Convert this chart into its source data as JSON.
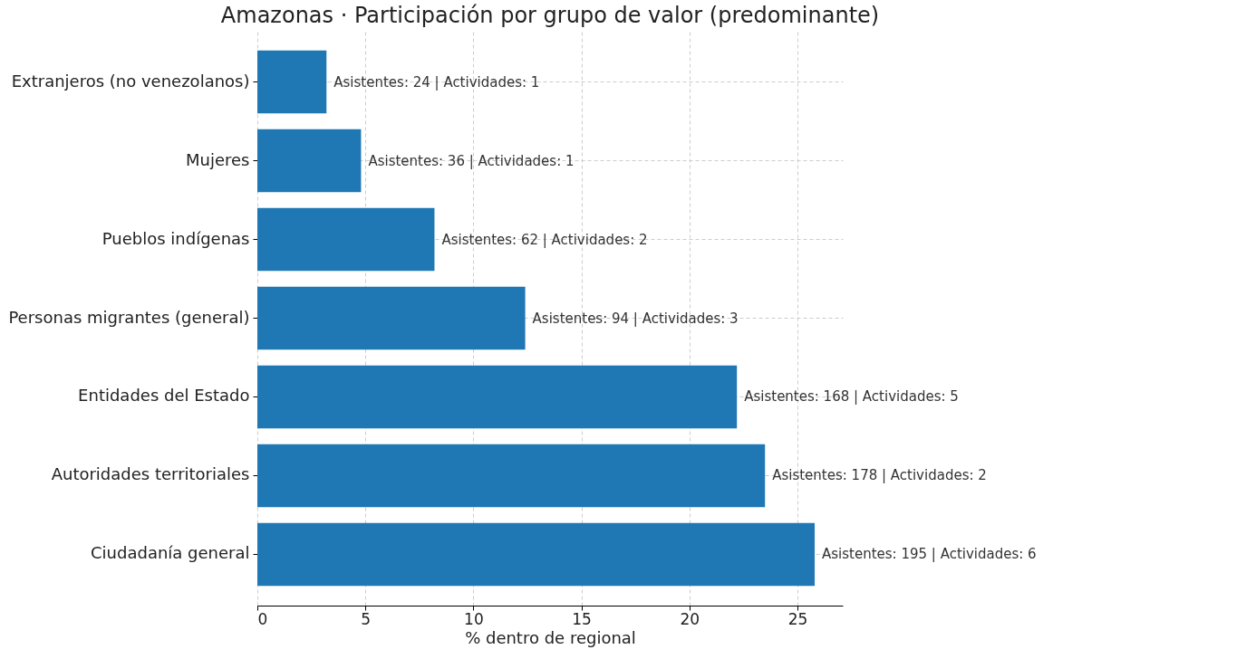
{
  "chart_data": {
    "type": "bar",
    "orientation": "horizontal",
    "title": "Amazonas · Participación por grupo de valor (predominante)",
    "xlabel": "% dentro de regional",
    "categories": [
      "Extranjeros (no venezolanos)",
      "Mujeres",
      "Pueblos indígenas",
      "Personas migrantes (general)",
      "Entidades del Estado",
      "Autoridades territoriales",
      "Ciudadanía general"
    ],
    "values": [
      3.2,
      4.8,
      8.2,
      12.4,
      22.2,
      23.5,
      25.8
    ],
    "value_labels": [
      "Asistentes: 24 | Actividades: 1",
      "Asistentes: 36 | Actividades: 1",
      "Asistentes: 62 | Actividades: 2",
      "Asistentes: 94 | Actividades: 3",
      "Asistentes: 168 | Actividades: 5",
      "Asistentes: 178 | Actividades: 2",
      "Asistentes: 195 | Actividades: 6"
    ],
    "color": "#1f77b4",
    "xlim": [
      0,
      27.1
    ],
    "xticks": [
      0,
      5,
      10,
      15,
      20,
      25
    ],
    "grid": true
  }
}
